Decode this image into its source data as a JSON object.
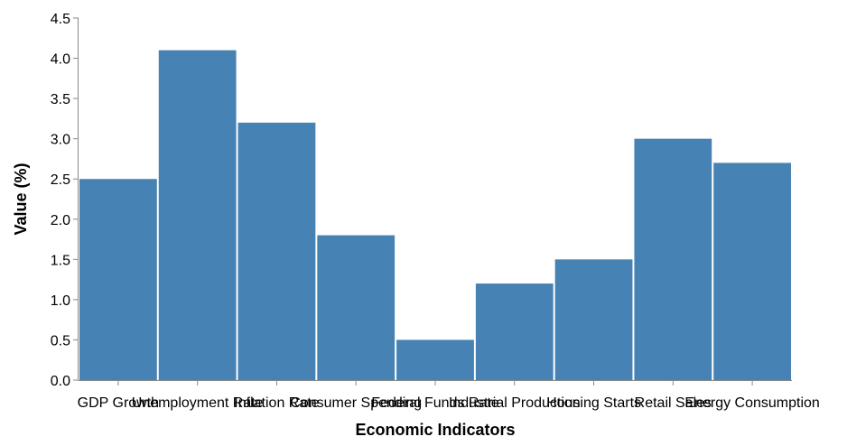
{
  "chart_data": {
    "type": "bar",
    "title": "",
    "xlabel": "Economic Indicators",
    "ylabel": "Value (%)",
    "categories": [
      "GDP Growth",
      "Unemployment Rate",
      "Inflation Rate",
      "Consumer Spending",
      "Federal Funds Rate",
      "Industrial Production",
      "Housing Starts",
      "Retail Sales",
      "Energy Consumption"
    ],
    "values": [
      2.5,
      4.1,
      3.2,
      1.8,
      0.5,
      1.2,
      1.5,
      3.0,
      2.7
    ],
    "ylim": [
      0,
      4.5
    ],
    "yticks": [
      "0.0",
      "0.5",
      "1.0",
      "1.5",
      "2.0",
      "2.5",
      "3.0",
      "3.5",
      "4.0",
      "4.5"
    ],
    "bar_color": "#4682b4",
    "grid": false,
    "legend": "none"
  }
}
